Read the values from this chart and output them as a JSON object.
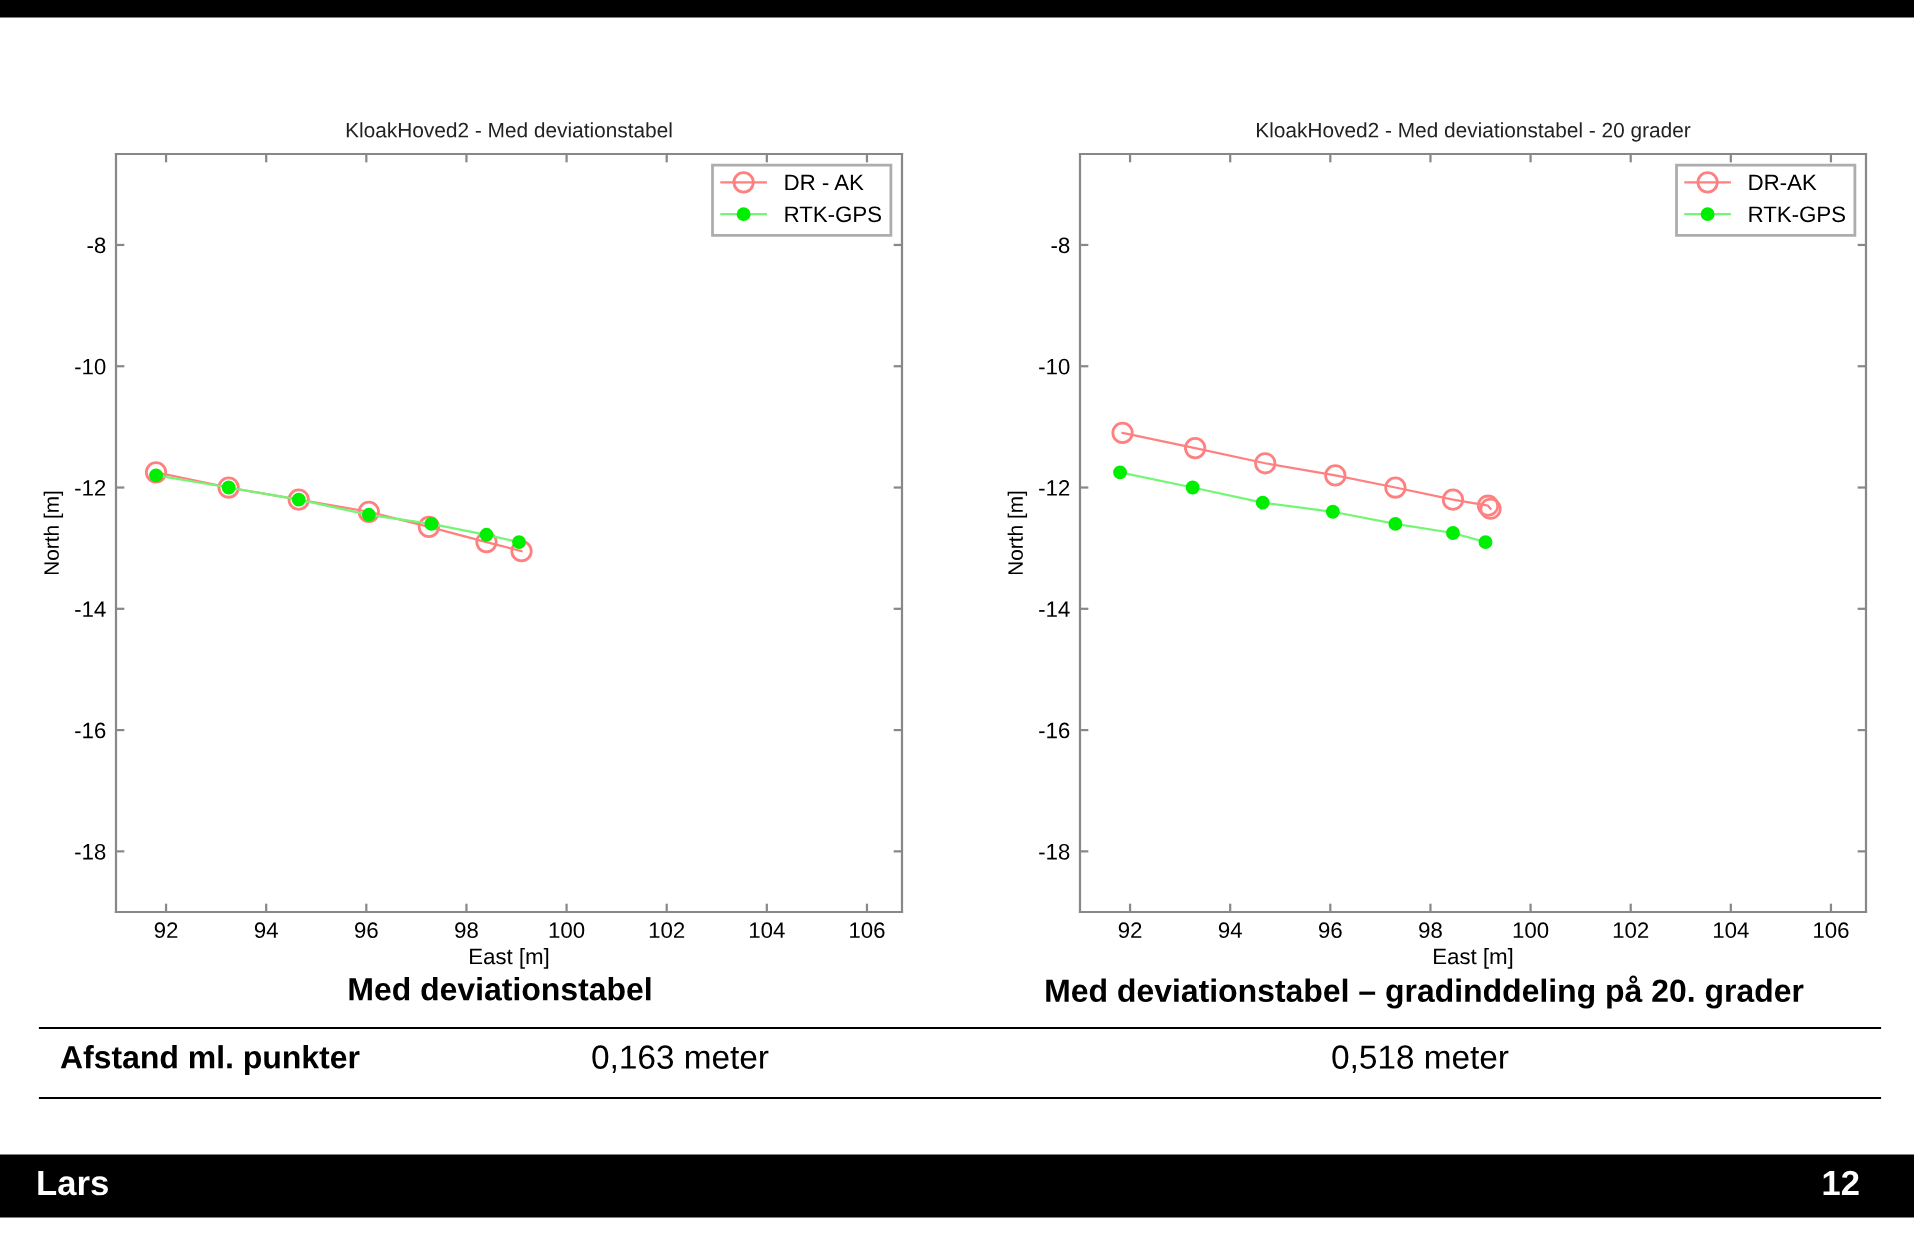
{
  "chart_data": [
    {
      "type": "line",
      "title": "KloakHoved2 - Med deviationstabel",
      "xlabel": "East [m]",
      "ylabel": "North [m]",
      "xlim": [
        91,
        106.7
      ],
      "ylim": [
        -19,
        -6.5
      ],
      "xticks": [
        92,
        94,
        96,
        98,
        100,
        102,
        104,
        106
      ],
      "yticks": [
        -18,
        -16,
        -14,
        -12,
        -10,
        -8
      ],
      "grid": false,
      "legend": "top right",
      "series": [
        {
          "name": "DR - AK",
          "color": "#ff8080",
          "marker": "circle",
          "x": [
            91.8,
            93.25,
            94.65,
            96.05,
            97.25,
            98.4,
            99.1
          ],
          "values": [
            -11.75,
            -12.0,
            -12.2,
            -12.4,
            -12.65,
            -12.9,
            -13.05
          ]
        },
        {
          "name": "RTK-GPS",
          "color": "#00ee00",
          "marker": "circle",
          "x": [
            91.8,
            93.25,
            94.65,
            96.05,
            97.3,
            98.4,
            99.05
          ],
          "values": [
            -11.8,
            -12.0,
            -12.2,
            -12.45,
            -12.6,
            -12.78,
            -12.9
          ]
        }
      ],
      "annotations": [
        "Med deviationstabel",
        "Med deviationstabel – gradinddeling på 20. grader",
        "Afstand ml. punkter",
        "0,163 meter",
        "0,518 meter",
        "Lars",
        "12"
      ]
    },
    {
      "type": "line",
      "title": "KloakHoved2 - Med deviationstabel - 20 grader",
      "xlabel": "East [m]",
      "ylabel": "North [m]",
      "xlim": [
        91,
        106.7
      ],
      "ylim": [
        -19,
        -6.5
      ],
      "xticks": [
        92,
        94,
        96,
        98,
        100,
        102,
        104,
        106
      ],
      "yticks": [
        -18,
        -16,
        -14,
        -12,
        -10,
        -8
      ],
      "grid": false,
      "legend": "top right",
      "series": [
        {
          "name": "DR-AK",
          "color": "#ff8080",
          "marker": "circle",
          "x": [
            91.85,
            93.3,
            94.7,
            96.1,
            97.3,
            98.45,
            99.15,
            99.2
          ],
          "values": [
            -11.1,
            -11.35,
            -11.6,
            -11.8,
            -12.0,
            -12.2,
            -12.3,
            -12.35
          ]
        },
        {
          "name": "RTK-GPS",
          "color": "#00ee00",
          "marker": "circle",
          "x": [
            91.8,
            93.25,
            94.65,
            96.05,
            97.3,
            98.45,
            99.1
          ],
          "values": [
            -11.75,
            -12.0,
            -12.25,
            -12.4,
            -12.6,
            -12.75,
            -12.9
          ]
        }
      ]
    }
  ]
}
